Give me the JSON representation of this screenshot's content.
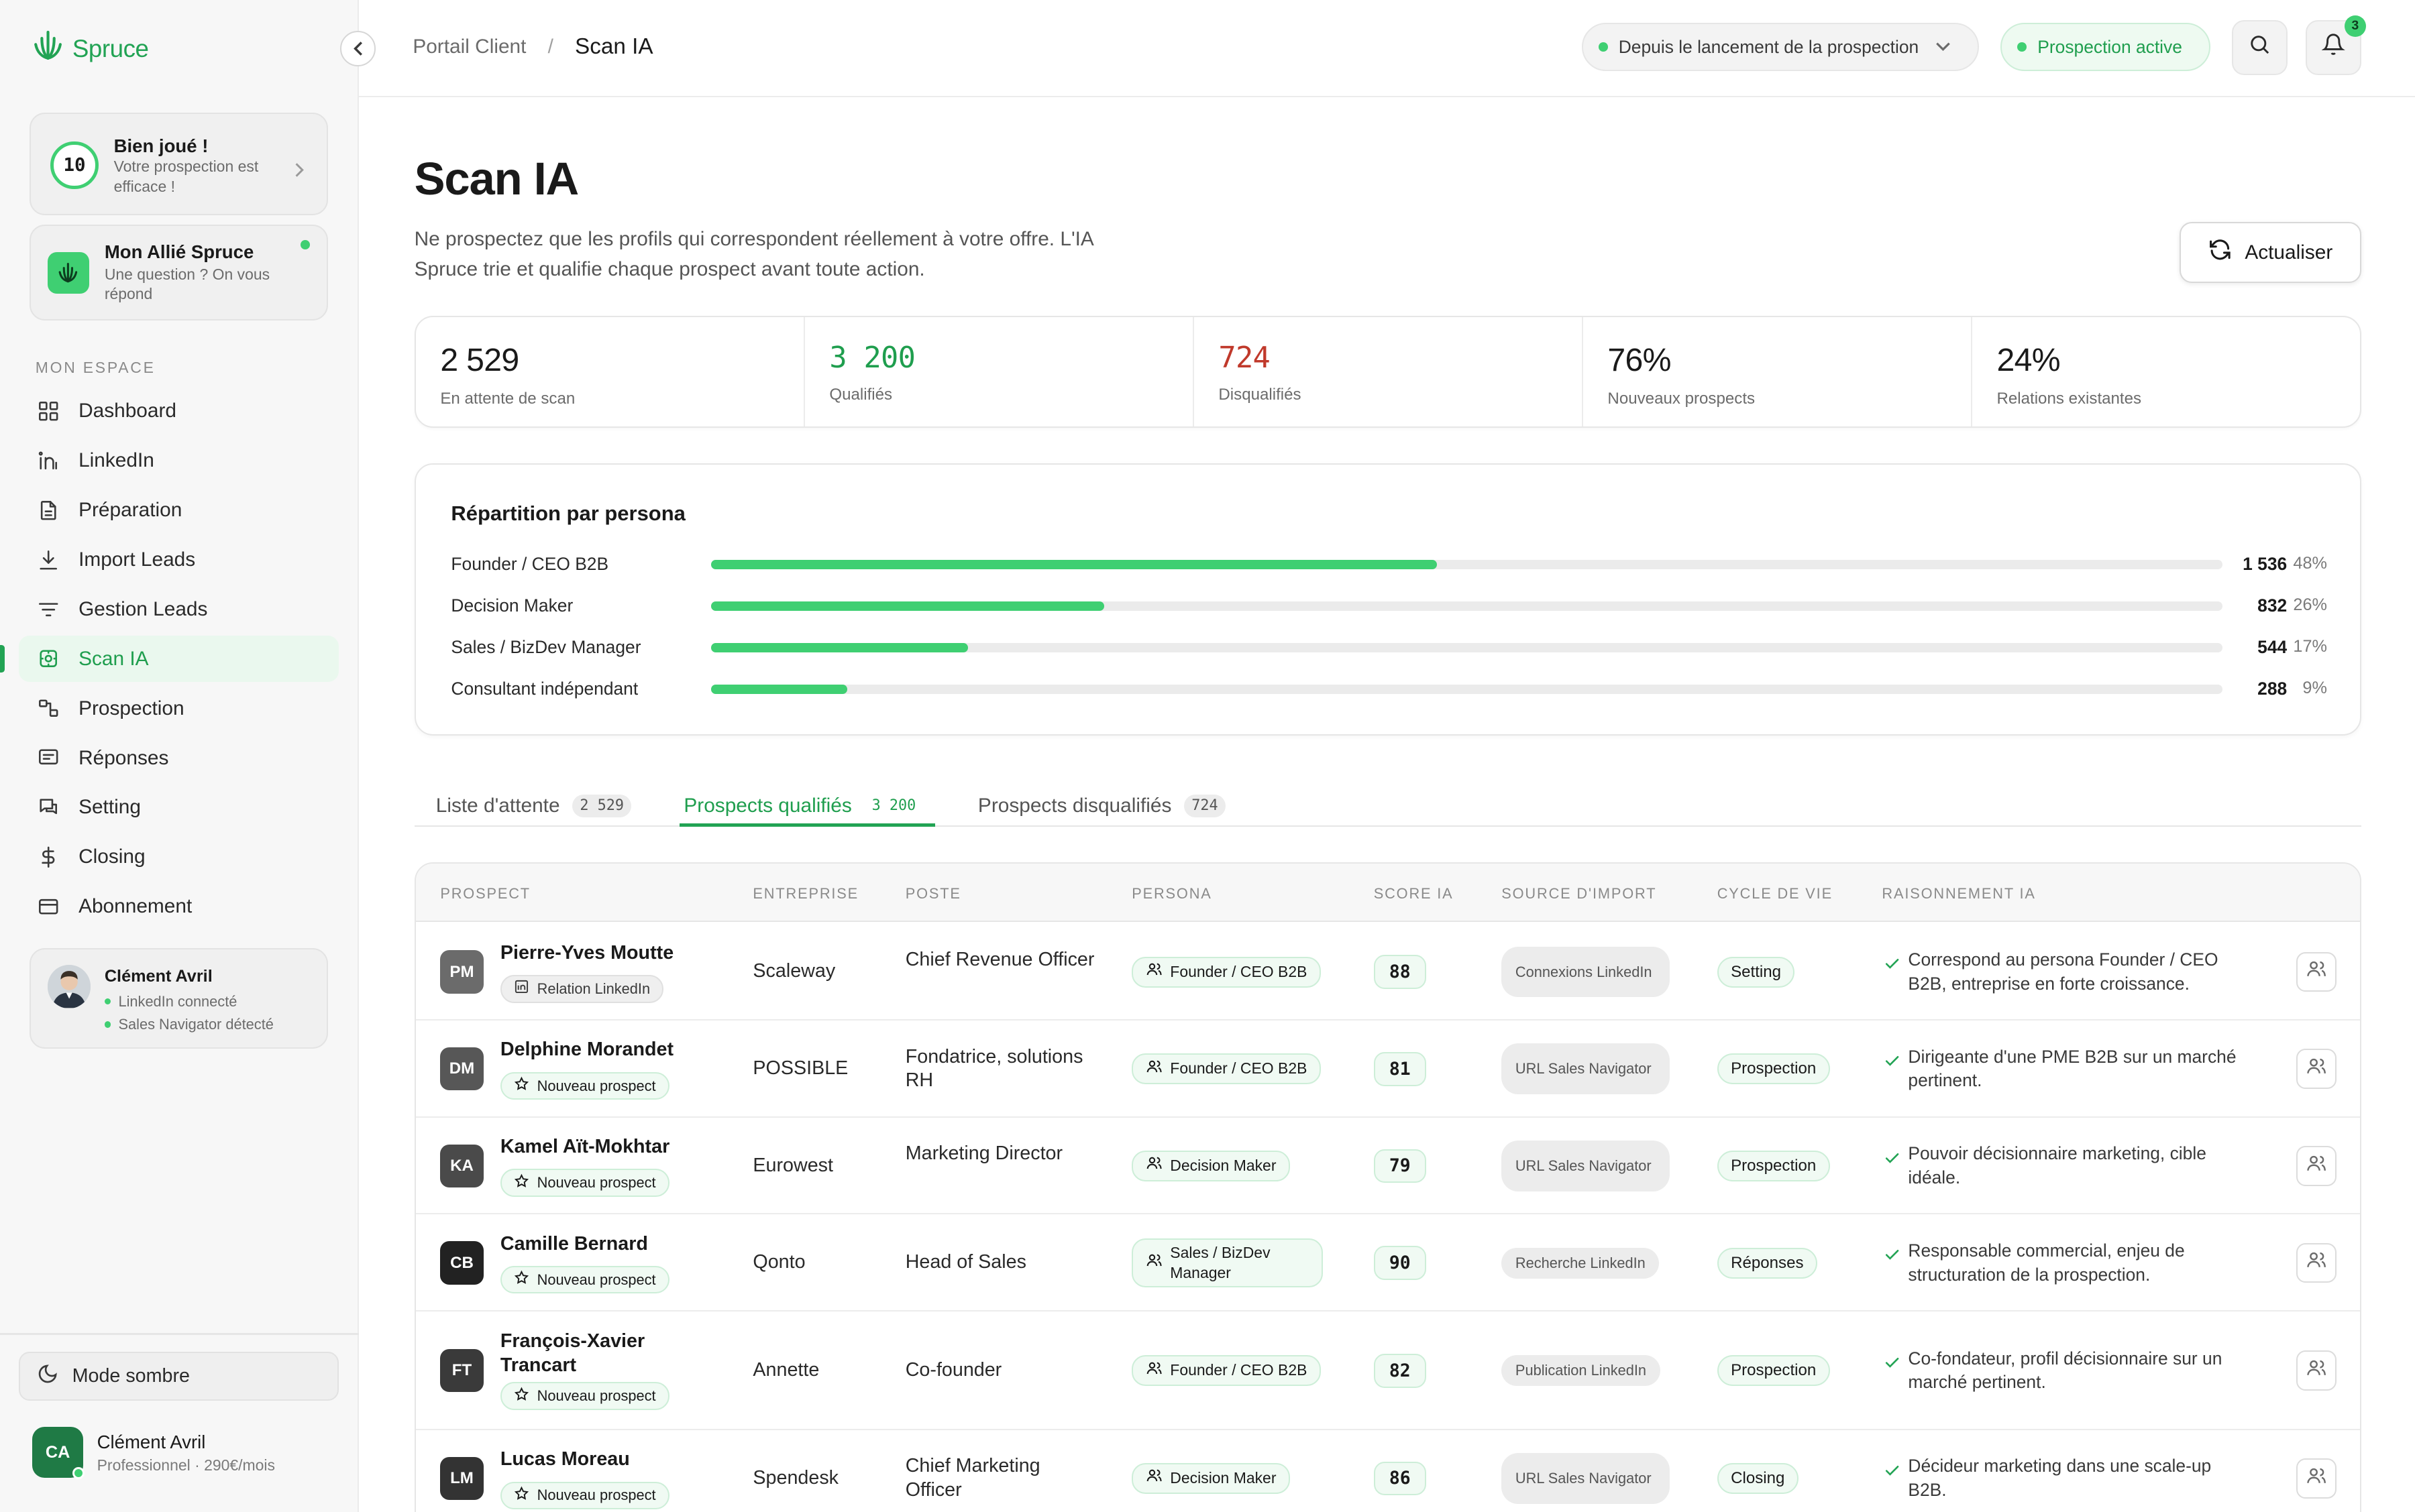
{
  "brand": {
    "name": "Spruce",
    "accent": "#22a354",
    "accent_light": "#3fcf72"
  },
  "sidebar": {
    "score_card": {
      "score": "10",
      "title": "Bien joué !",
      "subtitle": "Votre prospection est efficace !"
    },
    "ally_card": {
      "title": "Mon Allié Spruce",
      "subtitle": "Une question ? On vous répond"
    },
    "section_label": "MON ESPACE",
    "nav": [
      {
        "label": "Dashboard",
        "icon": "grid-icon"
      },
      {
        "label": "LinkedIn",
        "icon": "linkedin-icon"
      },
      {
        "label": "Préparation",
        "icon": "document-icon"
      },
      {
        "label": "Import Leads",
        "icon": "download-icon"
      },
      {
        "label": "Gestion Leads",
        "icon": "filter-icon"
      },
      {
        "label": "Scan IA",
        "icon": "scan-icon",
        "active": true
      },
      {
        "label": "Prospection",
        "icon": "workflow-icon"
      },
      {
        "label": "Réponses",
        "icon": "message-icon"
      },
      {
        "label": "Setting",
        "icon": "chat-icon"
      },
      {
        "label": "Closing",
        "icon": "dollar-icon"
      },
      {
        "label": "Abonnement",
        "icon": "card-icon"
      }
    ],
    "user_card": {
      "name": "Clément Avril",
      "status_1": "LinkedIn connecté",
      "status_2": "Sales Navigator détecté"
    },
    "dark_mode_label": "Mode sombre",
    "account": {
      "initials": "CA",
      "name": "Clément Avril",
      "plan": "Professionnel · 290€/mois"
    }
  },
  "header": {
    "breadcrumb_parent": "Portail Client",
    "breadcrumb_sep": "/",
    "breadcrumb_current": "Scan IA",
    "period_label": "Depuis le lancement de la prospection",
    "status_label": "Prospection active",
    "notification_count": "3"
  },
  "page": {
    "title": "Scan IA",
    "description": "Ne prospectez que les profils qui correspondent réellement à votre offre. L'IA Spruce trie et qualifie chaque prospect avant toute action.",
    "refresh_label": "Actualiser"
  },
  "stats": [
    {
      "value": "2 529",
      "label": "En attente de scan",
      "color": "#1a1a1a"
    },
    {
      "value": "3 200",
      "label": "Qualifiés",
      "color": "#1f9e4e"
    },
    {
      "value": "724",
      "label": "Disqualifiés",
      "color": "#c0392b"
    },
    {
      "value": "76%",
      "label": "Nouveaux prospects",
      "color": "#1a1a1a"
    },
    {
      "value": "24%",
      "label": "Relations existantes",
      "color": "#1a1a1a"
    }
  ],
  "persona_breakdown": {
    "title": "Répartition par persona",
    "rows": [
      {
        "label": "Founder / CEO B2B",
        "count": "1 536",
        "pct": "48%",
        "fraction": 0.48
      },
      {
        "label": "Decision Maker",
        "count": "832",
        "pct": "26%",
        "fraction": 0.26
      },
      {
        "label": "Sales / BizDev Manager",
        "count": "544",
        "pct": "17%",
        "fraction": 0.17
      },
      {
        "label": "Consultant indépendant",
        "count": "288",
        "pct": "9%",
        "fraction": 0.09
      }
    ]
  },
  "tabs": [
    {
      "label": "Liste d'attente",
      "count": "2 529"
    },
    {
      "label": "Prospects qualifiés",
      "count": "3 200",
      "active": true
    },
    {
      "label": "Prospects disqualifiés",
      "count": "724"
    }
  ],
  "table": {
    "columns": [
      "Prospect",
      "Entreprise",
      "Poste",
      "Persona",
      "Score IA",
      "Source d'import",
      "Cycle de vie",
      "Raisonnement IA"
    ],
    "rows": [
      {
        "initials": "PM",
        "avatar_color": "#6b6b6b",
        "name": "Pierre-Yves Moutte",
        "tag": "Relation LinkedIn",
        "tag_type": "li",
        "company": "Scaleway",
        "position": "Chief Revenue Officer",
        "persona": "Founder / CEO B2B",
        "score": "88",
        "source": "Connexions LinkedIn",
        "cycle": "Setting",
        "reason": "Correspond au persona Founder / CEO B2B, entreprise en forte croissance."
      },
      {
        "initials": "DM",
        "avatar_color": "#575757",
        "name": "Delphine Morandet",
        "tag": "Nouveau prospect",
        "tag_type": "new",
        "company": "POSSIBLE",
        "position": "Fondatrice, solutions RH",
        "persona": "Founder / CEO B2B",
        "score": "81",
        "source": "URL Sales Navigator",
        "cycle": "Prospection",
        "reason": "Dirigeante d'une PME B2B sur un marché pertinent."
      },
      {
        "initials": "KA",
        "avatar_color": "#4a4a4a",
        "name": "Kamel Aït-Mokhtar",
        "tag": "Nouveau prospect",
        "tag_type": "new",
        "company": "Eurowest",
        "position": "Marketing Director",
        "persona": "Decision Maker",
        "score": "79",
        "source": "URL Sales Navigator",
        "cycle": "Prospection",
        "reason": "Pouvoir décisionnaire marketing, cible idéale."
      },
      {
        "initials": "CB",
        "avatar_color": "#222222",
        "name": "Camille Bernard",
        "tag": "Nouveau prospect",
        "tag_type": "new",
        "company": "Qonto",
        "position": "Head of Sales",
        "persona": "Sales / BizDev Manager",
        "score": "90",
        "source": "Recherche LinkedIn",
        "cycle": "Réponses",
        "reason": "Responsable commercial, enjeu de structuration de la prospection."
      },
      {
        "initials": "FT",
        "avatar_color": "#3a3a3a",
        "name": "François-Xavier Trancart",
        "tag": "Nouveau prospect",
        "tag_type": "new",
        "company": "Annette",
        "position": "Co-founder",
        "persona": "Founder / CEO B2B",
        "score": "82",
        "source": "Publication LinkedIn",
        "cycle": "Prospection",
        "reason": "Co-fondateur, profil décisionnaire sur un marché pertinent."
      },
      {
        "initials": "LM",
        "avatar_color": "#333333",
        "name": "Lucas Moreau",
        "tag": "Nouveau prospect",
        "tag_type": "new",
        "company": "Spendesk",
        "position": "Chief Marketing Officer",
        "persona": "Decision Maker",
        "score": "86",
        "source": "URL Sales Navigator",
        "cycle": "Closing",
        "reason": "Décideur marketing dans une scale-up B2B."
      }
    ]
  }
}
